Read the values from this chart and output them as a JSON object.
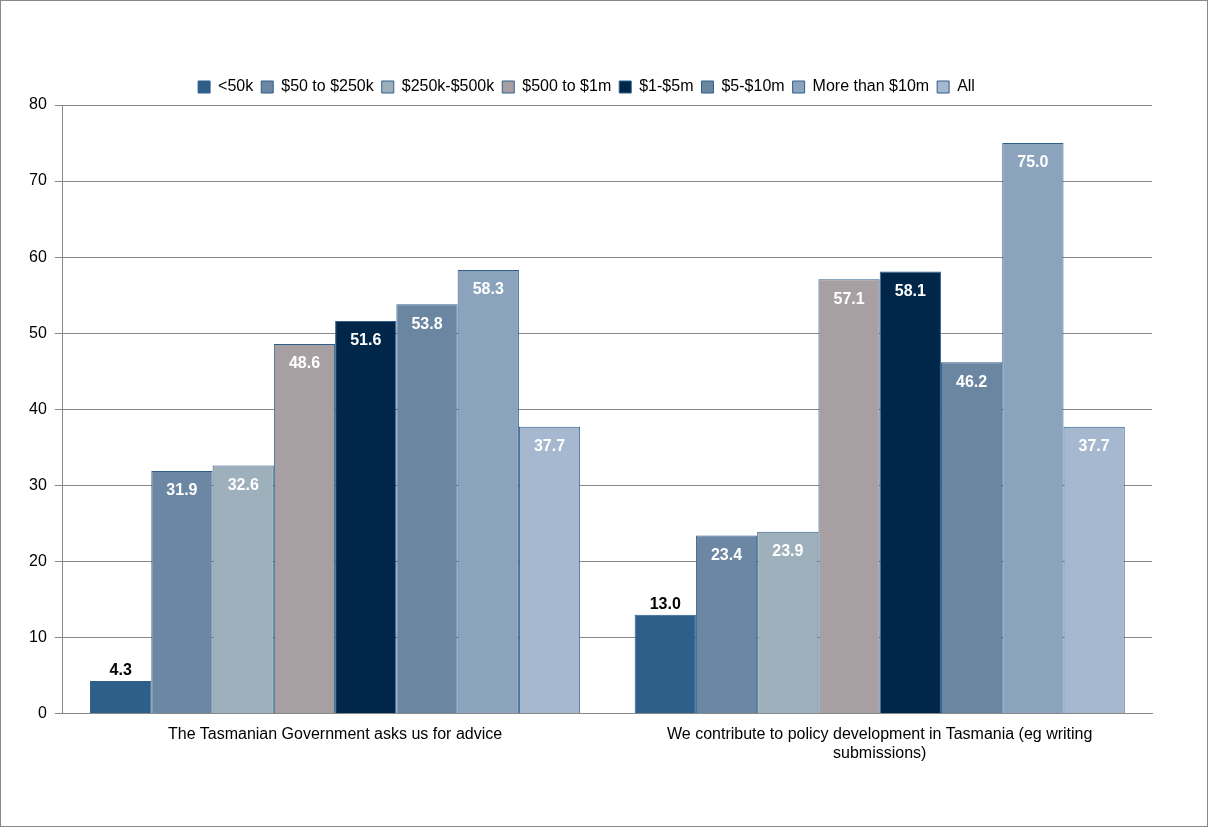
{
  "chart_data": {
    "type": "bar",
    "categories": [
      "The Tasmanian Government asks us for advice",
      "We contribute to policy development in Tasmania (eg writing submissions)"
    ],
    "series": [
      {
        "name": "<50k",
        "color": "#2e5f8a",
        "values": [
          4.3,
          13.0
        ],
        "value_labels": [
          "4.3",
          "13.0"
        ]
      },
      {
        "name": "$50 to $250k",
        "color": "#6b87a3",
        "values": [
          31.9,
          23.4
        ],
        "value_labels": [
          "31.9",
          "23.4"
        ]
      },
      {
        "name": "$250k-$500k",
        "color": "#9fb0bd",
        "values": [
          32.6,
          23.9
        ],
        "value_labels": [
          "32.6",
          "23.9"
        ]
      },
      {
        "name": "$500 to $1m",
        "color": "#a89fa3",
        "values": [
          48.6,
          57.1
        ],
        "value_labels": [
          "48.6",
          "57.1"
        ]
      },
      {
        "name": "$1-$5m",
        "color": "#00264a",
        "values": [
          51.6,
          58.1
        ],
        "value_labels": [
          "51.6",
          "58.1"
        ]
      },
      {
        "name": "$5-$10m",
        "color": "#6a86a0",
        "values": [
          53.8,
          46.2
        ],
        "value_labels": [
          "53.8",
          "46.2"
        ]
      },
      {
        "name": "More than $10m",
        "color": "#8ca3bd",
        "values": [
          58.3,
          75.0
        ],
        "value_labels": [
          "58.3",
          "75.0"
        ]
      },
      {
        "name": "All",
        "color": "#a6b8cf",
        "values": [
          37.7,
          37.7
        ],
        "value_labels": [
          "37.7",
          "37.7"
        ]
      }
    ],
    "ylim": [
      0,
      80
    ],
    "yticks": [
      0,
      10,
      20,
      30,
      40,
      50,
      60,
      70,
      80
    ],
    "grid": "y",
    "legend": "top"
  }
}
